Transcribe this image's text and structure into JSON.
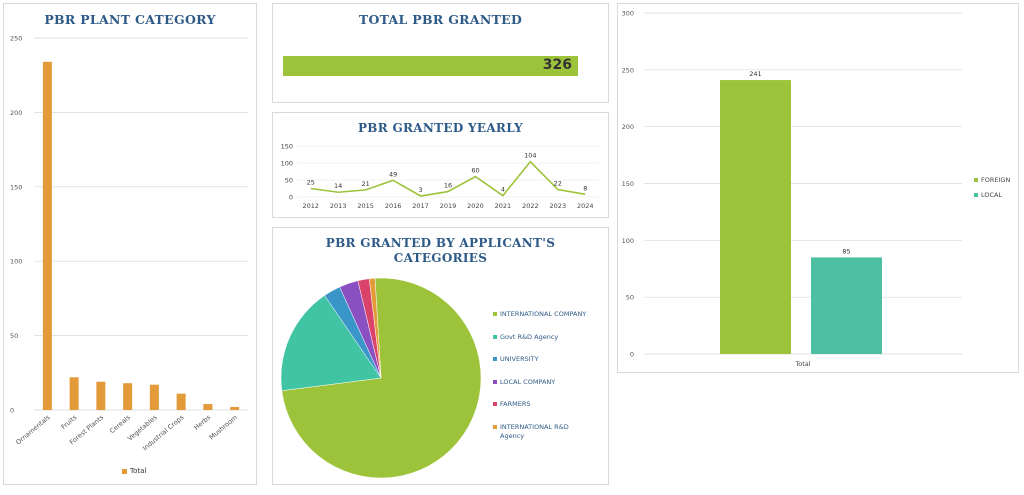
{
  "colors": {
    "title": "#2e5a87",
    "orange": "#e39b3a",
    "green": "#9dc33b",
    "teal": "#4dbfa2",
    "grid": "#d9d9d9"
  },
  "plant_category": {
    "title": "PBR PLANT CATEGORY",
    "legend_label": "Total"
  },
  "total_granted": {
    "title": "TOTAL PBR GRANTED",
    "value": "326",
    "fill_fraction": 1.0
  },
  "yearly": {
    "title": "PBR GRANTED YEARLY"
  },
  "applicant": {
    "title_line1": "PBR GRANTED BY APPLICANT'S",
    "title_line2": "CATEGORIES"
  },
  "origin": {},
  "chart_data": [
    {
      "type": "bar",
      "title": "PBR PLANT CATEGORY",
      "categories": [
        "Ornamentals",
        "Fruits",
        "Forest Plants",
        "Cereals",
        "Vegetables",
        "Industrial Crops",
        "Herbs",
        "Mushroom"
      ],
      "series": [
        {
          "name": "Total",
          "values": [
            234,
            22,
            19,
            18,
            17,
            11,
            4,
            2
          ]
        }
      ],
      "ylim": [
        0,
        250
      ],
      "yticks": [
        0,
        50,
        100,
        150,
        200,
        250
      ],
      "legend": "bottom",
      "grid": true
    },
    {
      "type": "line",
      "title": "PBR GRANTED YEARLY",
      "categories": [
        "2012",
        "2013",
        "2015",
        "2016",
        "2017",
        "2019",
        "2020",
        "2021",
        "2022",
        "2023",
        "2024"
      ],
      "series": [
        {
          "values": [
            25,
            14,
            21,
            49,
            3,
            16,
            60,
            4,
            104,
            22,
            8
          ]
        }
      ],
      "ylim": [
        0,
        150
      ],
      "yticks": [
        0,
        50,
        100,
        150
      ],
      "grid": true
    },
    {
      "type": "pie",
      "title": "PBR GRANTED BY APPLICANT'S CATEGORIES",
      "labels": [
        "INTERNATIONAL COMPANY",
        "Govt R&D Agency",
        "UNIVERSITY",
        "LOCAL COMPANY",
        "FARMERS",
        "INTERNATIONAL R&D Agency"
      ],
      "values": [
        241,
        57,
        9,
        10,
        6,
        3
      ],
      "colors": [
        "#9dc33b",
        "#40c4a3",
        "#3a96c8",
        "#8a4fc0",
        "#d9436a",
        "#e39b3a"
      ],
      "legend": "right"
    },
    {
      "type": "bar",
      "categories": [
        "Total"
      ],
      "series": [
        {
          "name": "FOREIGN",
          "values": [
            241
          ],
          "color": "#9dc33b"
        },
        {
          "name": "LOCAL",
          "values": [
            85
          ],
          "color": "#4dbfa2"
        }
      ],
      "ylim": [
        0,
        300
      ],
      "yticks": [
        0,
        50,
        100,
        150,
        200,
        250,
        300
      ],
      "legend": "right",
      "grid": true
    }
  ]
}
